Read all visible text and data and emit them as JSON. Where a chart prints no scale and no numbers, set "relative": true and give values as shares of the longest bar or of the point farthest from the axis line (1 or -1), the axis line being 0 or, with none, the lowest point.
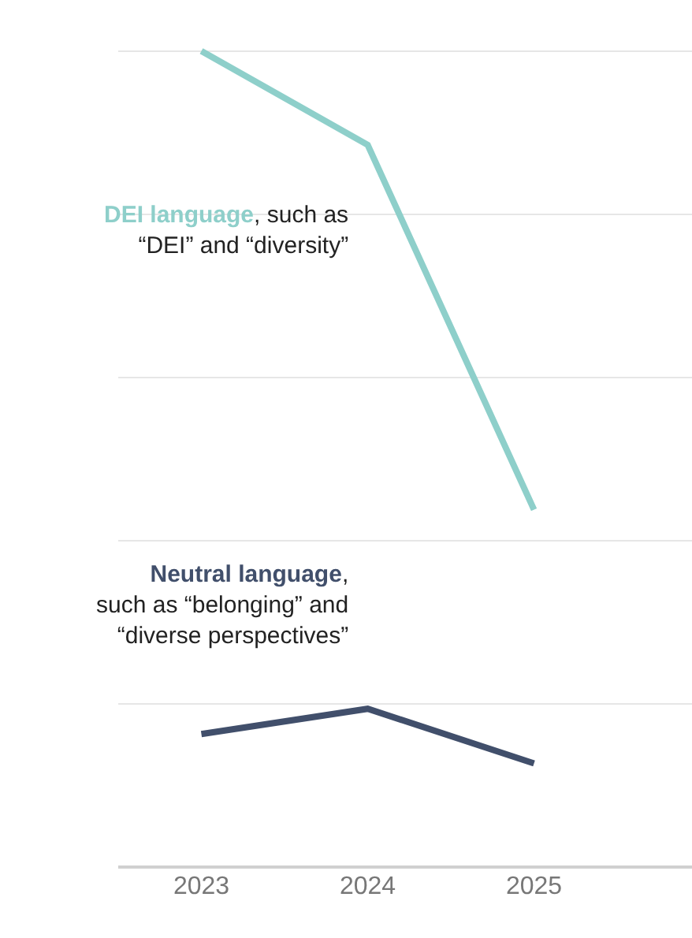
{
  "chart_data": {
    "type": "line",
    "relative": true,
    "grid": "y",
    "legend": false,
    "marker": "none",
    "line_style": "solid",
    "categories": [
      "2023",
      "2024",
      "2025"
    ],
    "series": [
      {
        "name": "DEI language, such as\n“DEI” and “diversity”",
        "color": "#8ecfca",
        "values": [
          1,
          0.885,
          0.438
        ]
      },
      {
        "name": "Neutral language,\nsuch as “belonging” and\n“diverse perspectives”",
        "color": "#414f6b",
        "values": [
          0.163,
          0.194,
          0.127
        ]
      }
    ]
  }
}
